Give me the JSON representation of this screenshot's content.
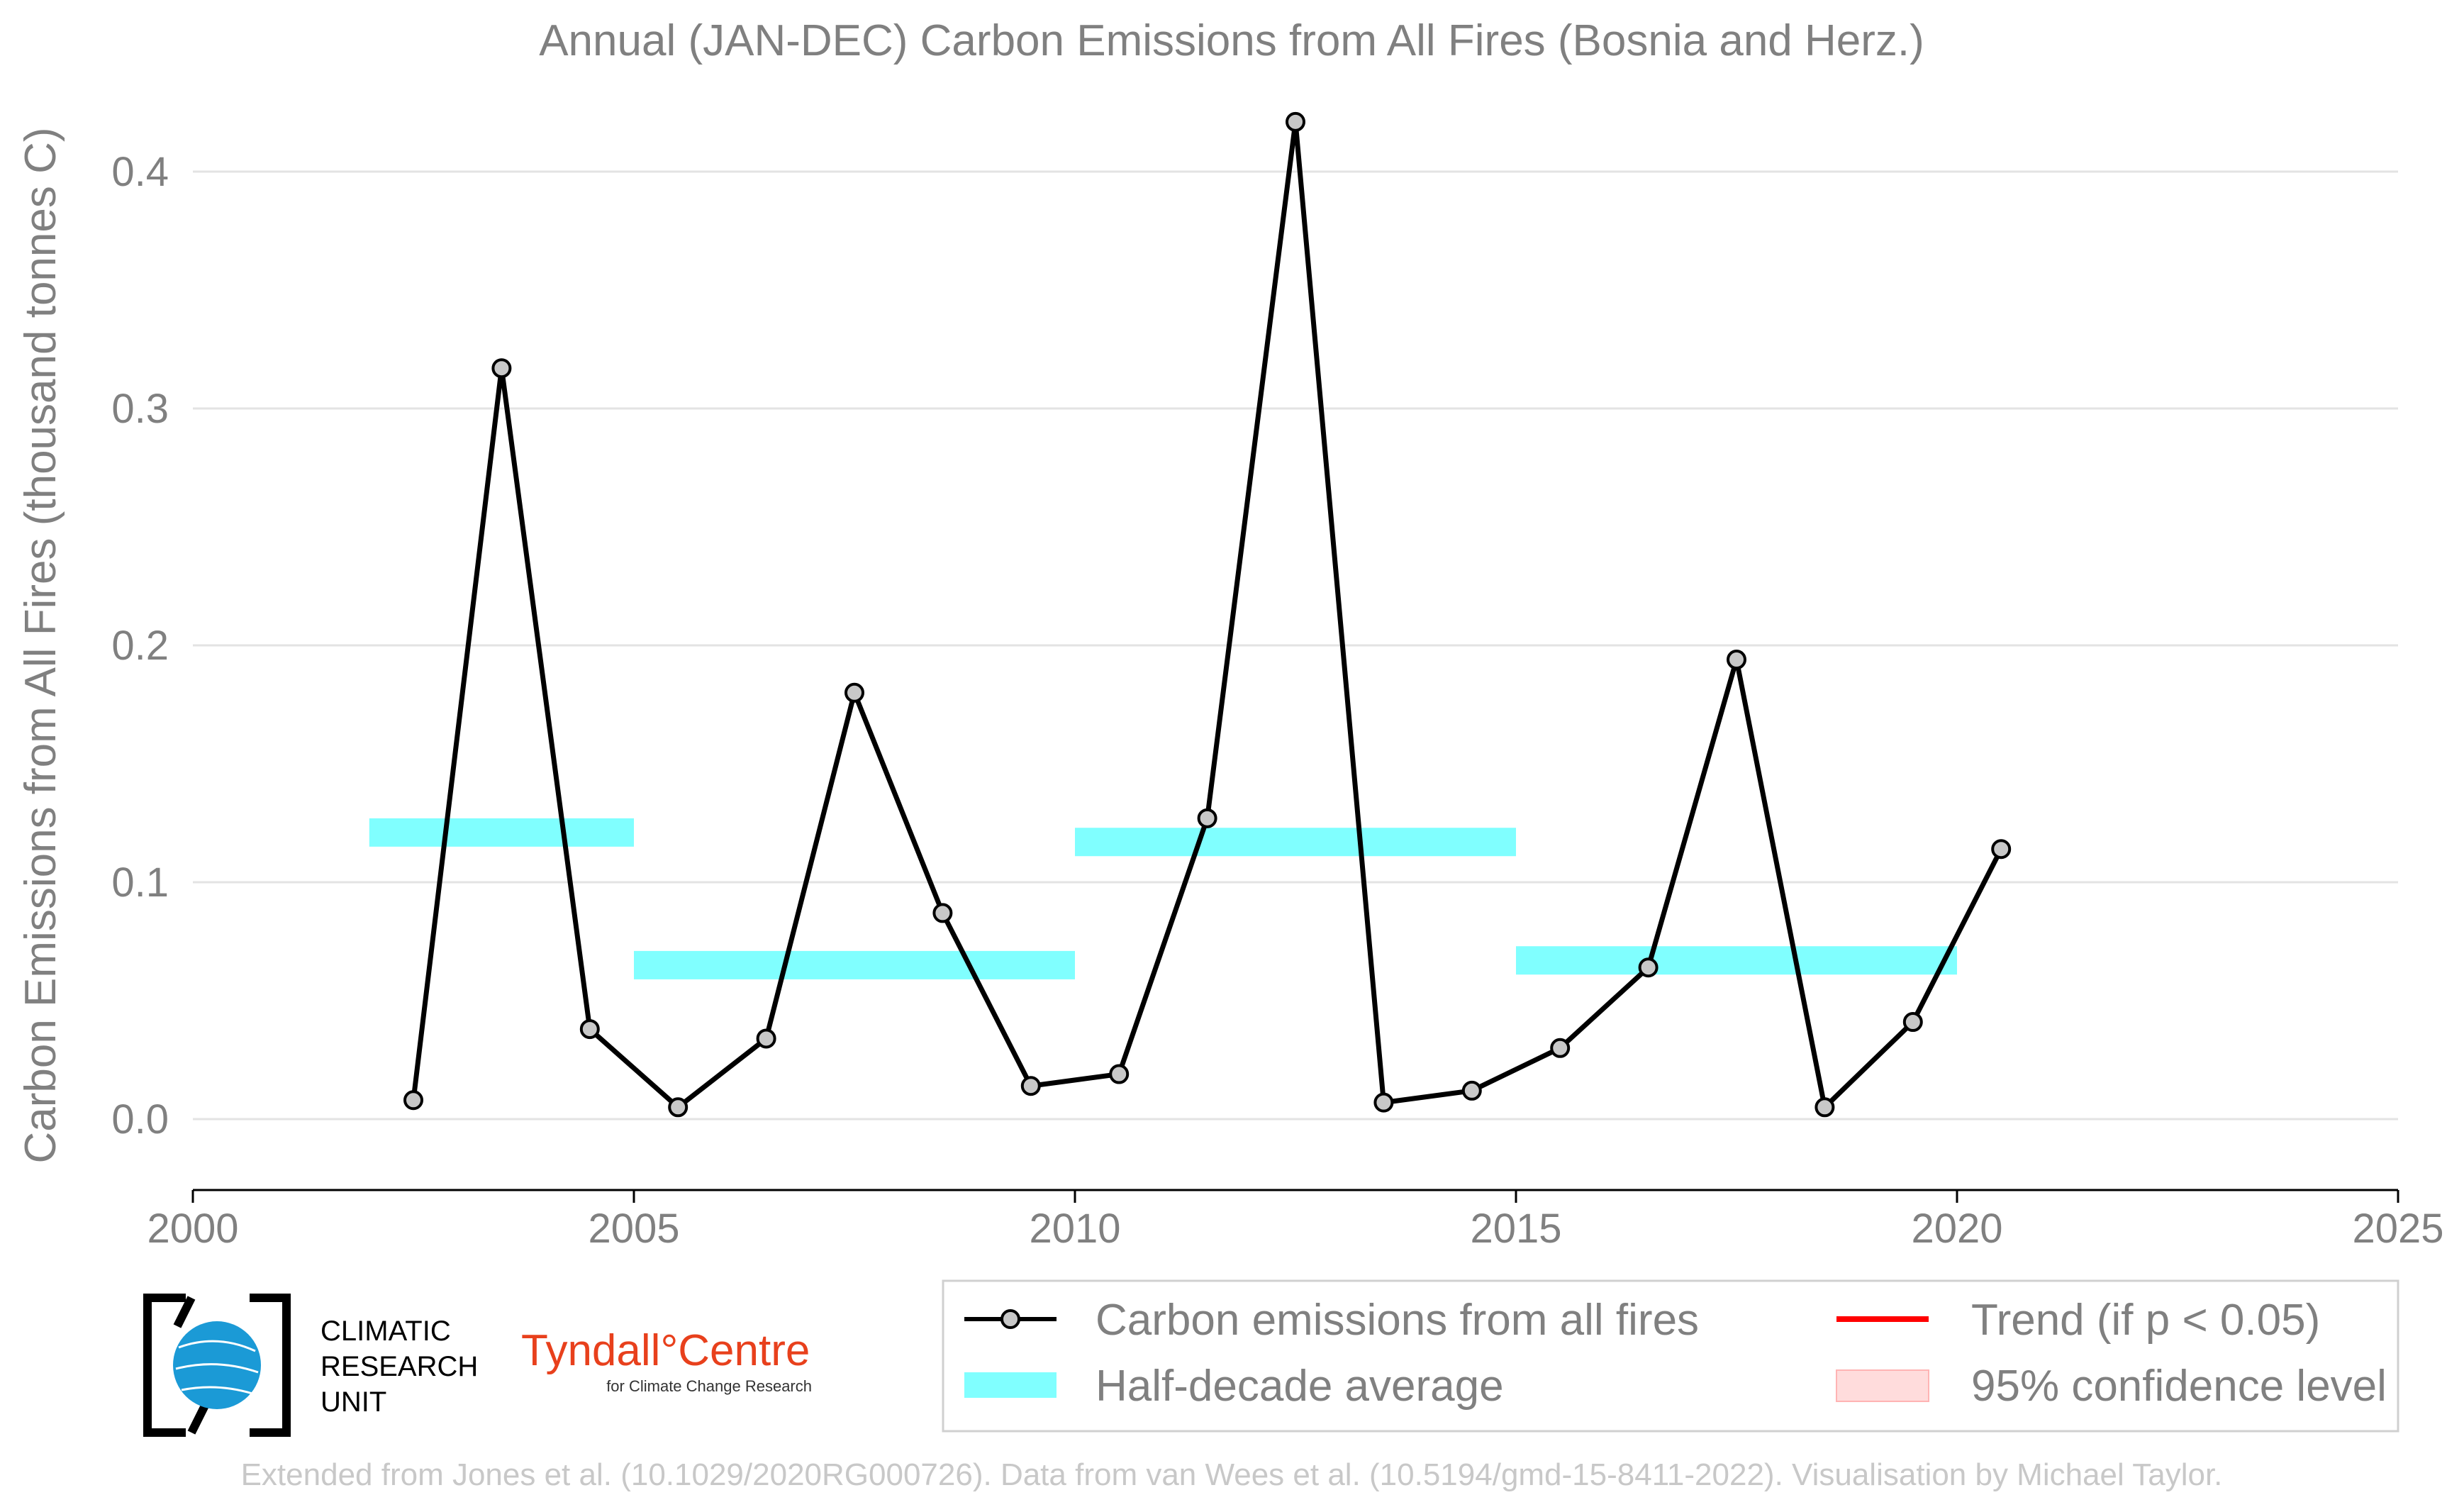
{
  "chart_data": {
    "type": "line",
    "title": "Annual (JAN-DEC) Carbon Emissions from All Fires (Bosnia and Herz.)",
    "ylabel": "Carbon Emissions from All Fires (thousand tonnes C)",
    "xlabel": "",
    "xlim": [
      2000,
      2025
    ],
    "ylim": [
      -0.03,
      0.44
    ],
    "xticks": [
      2000,
      2005,
      2010,
      2015,
      2020,
      2025
    ],
    "yticks": [
      0.0,
      0.1,
      0.2,
      0.3,
      0.4
    ],
    "xtick_labels": [
      "2000",
      "2005",
      "2010",
      "2015",
      "2020",
      "2025"
    ],
    "ytick_labels": [
      "0.0",
      "0.1",
      "0.2",
      "0.3",
      "0.4"
    ],
    "grid": "horizontal",
    "series": [
      {
        "name": "Carbon emissions from all fires",
        "color": "#000000",
        "marker_fill": "#c8c8c8",
        "x": [
          2002.5,
          2003.5,
          2004.5,
          2005.5,
          2006.5,
          2007.5,
          2008.5,
          2009.5,
          2010.5,
          2011.5,
          2012.5,
          2013.5,
          2014.5,
          2015.5,
          2016.5,
          2017.5,
          2018.5,
          2019.5,
          2020.5
        ],
        "y": [
          0.008,
          0.317,
          0.038,
          0.005,
          0.034,
          0.18,
          0.087,
          0.014,
          0.019,
          0.127,
          0.421,
          0.007,
          0.012,
          0.03,
          0.064,
          0.194,
          0.005,
          0.041,
          0.114
        ]
      }
    ],
    "half_decade_averages": {
      "name": "Half-decade average",
      "color": "#80ffff",
      "segments": [
        {
          "x0": 2002,
          "x1": 2005,
          "y": 0.121
        },
        {
          "x0": 2005,
          "x1": 2010,
          "y": 0.065
        },
        {
          "x0": 2010,
          "x1": 2015,
          "y": 0.117
        },
        {
          "x0": 2015,
          "x1": 2020,
          "y": 0.067
        }
      ]
    },
    "legend": {
      "placement": "bottom-right",
      "entries": [
        {
          "label": "Carbon emissions from all fires",
          "kind": "line-marker",
          "color": "#000000"
        },
        {
          "label": "Trend (if p < 0.05)",
          "kind": "line",
          "color": "#ff0000"
        },
        {
          "label": "Half-decade average",
          "kind": "band",
          "color": "#80ffff"
        },
        {
          "label": "95% confidence level",
          "kind": "patch",
          "color": "#ffdcdc"
        }
      ]
    }
  },
  "logos": {
    "cru_lines": [
      "CLIMATIC",
      "RESEARCH",
      "UNIT"
    ],
    "tyndall_main": "Tyndall°Centre",
    "tyndall_sub": "for Climate Change Research"
  },
  "footer": "Extended from Jones et al. (10.1029/2020RG000726). Data from van Wees et al. (10.5194/gmd-15-8411-2022). Visualisation by Michael Taylor."
}
